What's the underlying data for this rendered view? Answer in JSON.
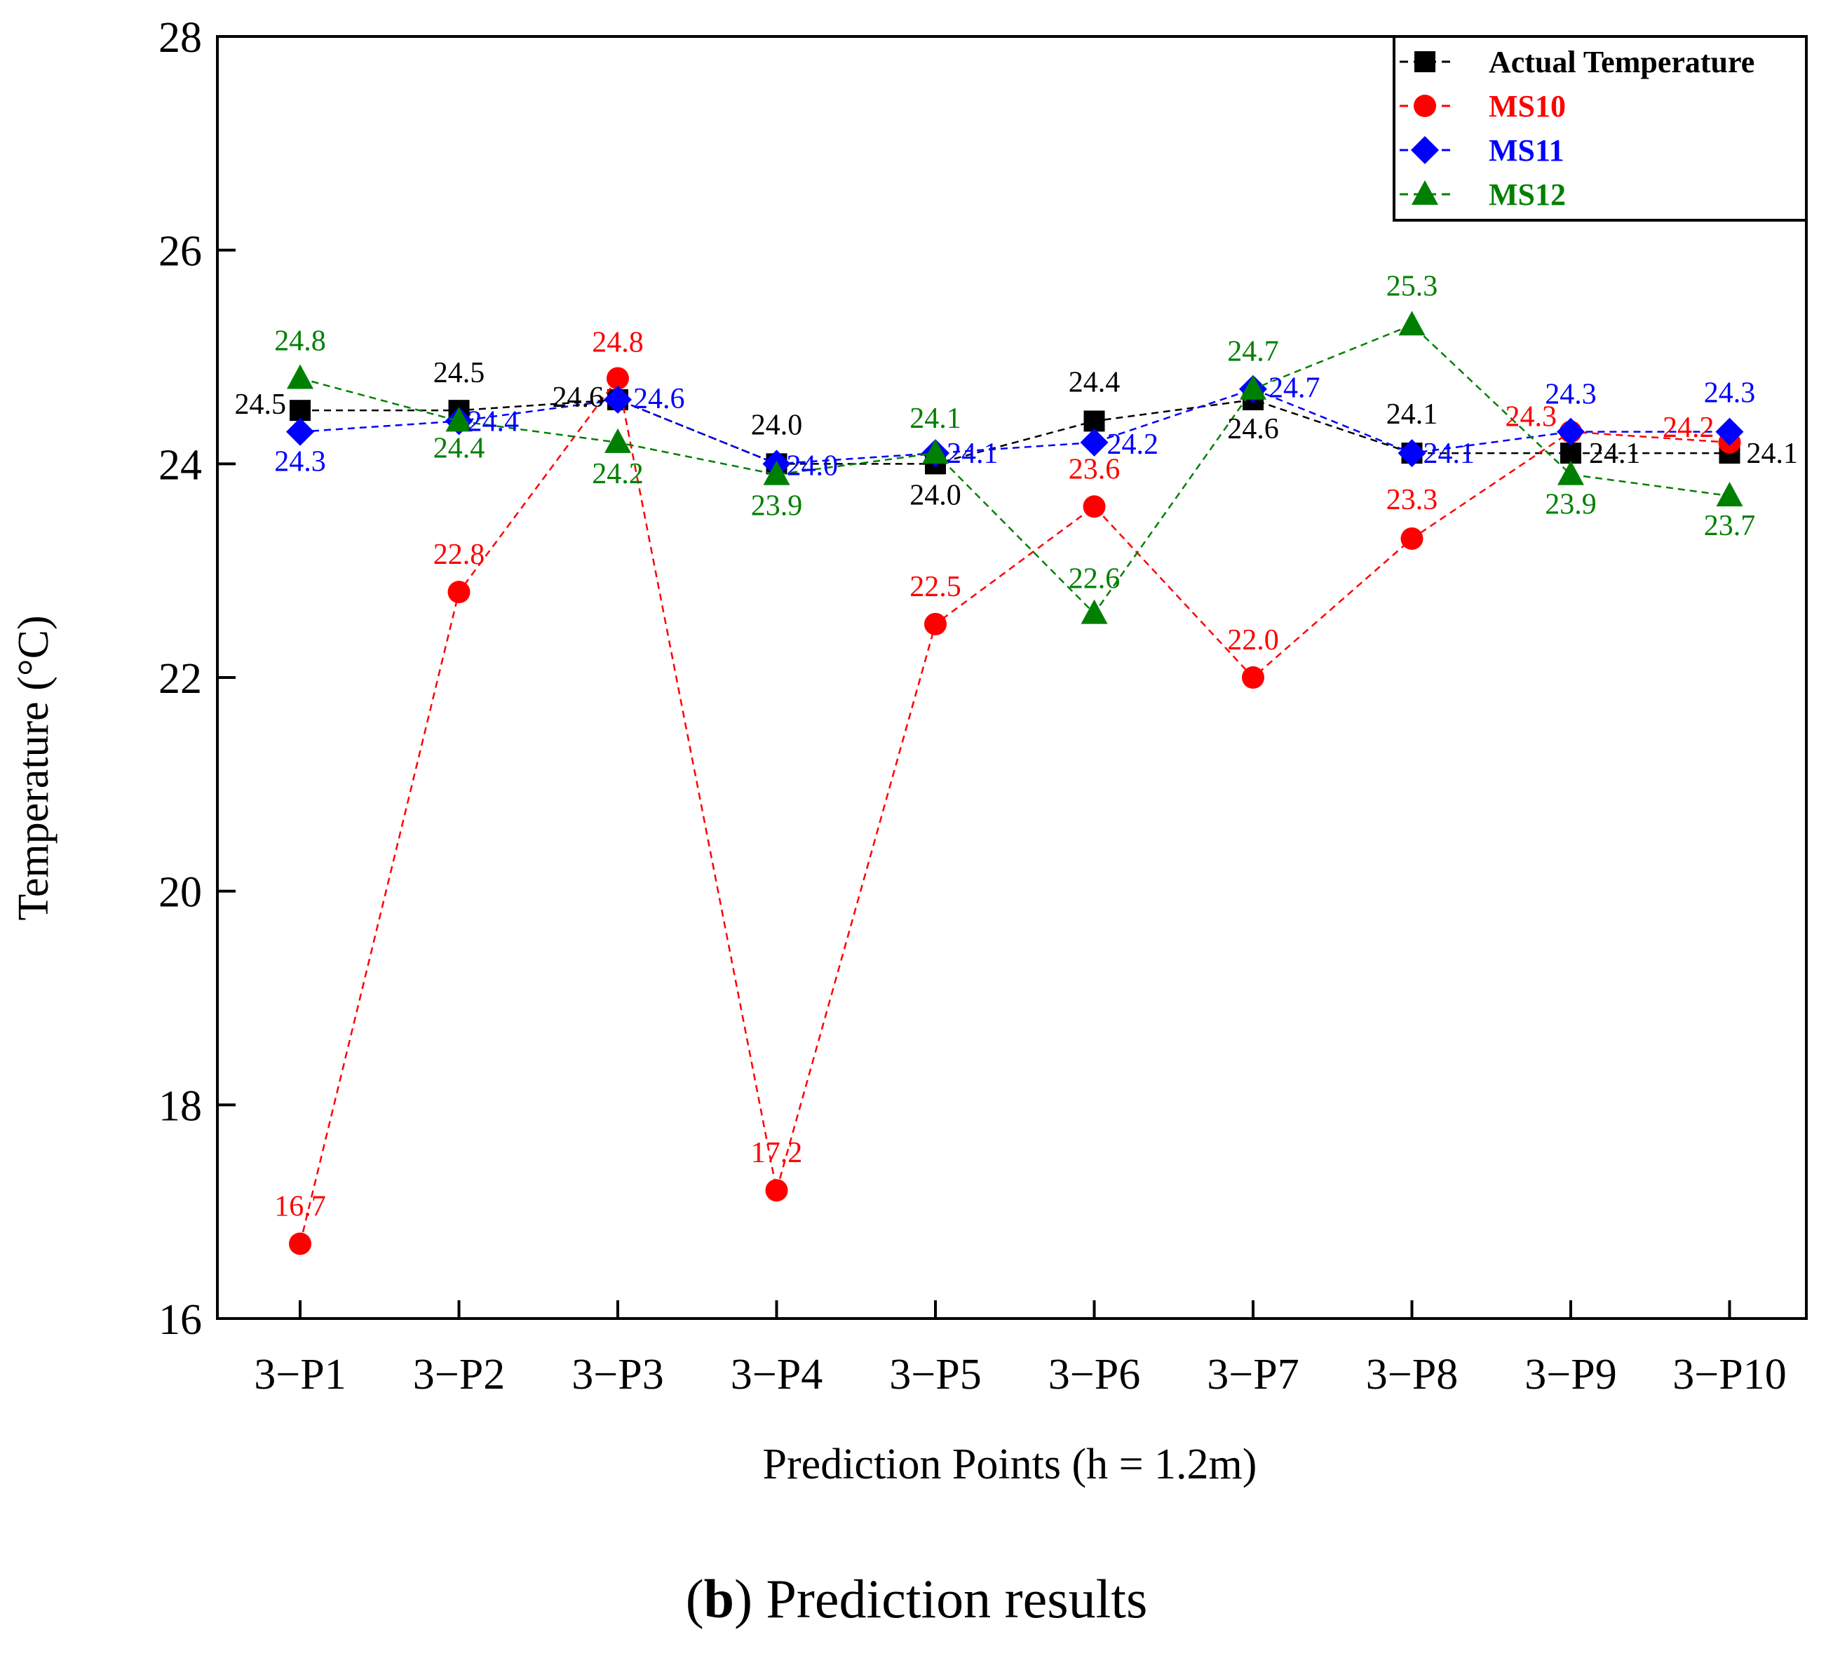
{
  "chart_data": {
    "type": "line",
    "title": "",
    "xlabel": "Prediction Points (h = 1.2m)",
    "ylabel": "Temperature (°C)",
    "ylim": [
      16,
      28
    ],
    "yticks": [
      "16",
      "18",
      "20",
      "22",
      "24",
      "26",
      "28"
    ],
    "categories": [
      "3−P1",
      "3−P2",
      "3−P3",
      "3−P4",
      "3−P5",
      "3−P6",
      "3−P7",
      "3−P8",
      "3−P9",
      "3−P10"
    ],
    "legend_position": "top-right",
    "series": [
      {
        "name": "Actual Temperature",
        "color": "#000000",
        "marker": "square",
        "values": [
          24.5,
          24.5,
          24.6,
          24.0,
          24.0,
          24.4,
          24.6,
          24.1,
          24.1,
          24.1
        ],
        "labels": [
          "24.5",
          "24.5",
          "24.6",
          "24.0",
          "24.0",
          "24.4",
          "24.6",
          "24.1",
          "24.1",
          "24.1"
        ]
      },
      {
        "name": "MS10",
        "color": "#ff0000",
        "marker": "circle",
        "values": [
          16.7,
          22.8,
          24.8,
          17.2,
          22.5,
          23.6,
          22.0,
          23.3,
          24.3,
          24.2
        ],
        "labels": [
          "16.7",
          "22.8",
          "24.8",
          "17.2",
          "22.5",
          "23.6",
          "22.0",
          "23.3",
          "24.3",
          "24.2"
        ]
      },
      {
        "name": "MS11",
        "color": "#0000ff",
        "marker": "diamond",
        "values": [
          24.3,
          24.4,
          24.6,
          24.0,
          24.1,
          24.2,
          24.7,
          24.1,
          24.3,
          24.3
        ],
        "labels": [
          "24.3",
          "24.4",
          "24.6",
          "24.0",
          "24.1",
          "24.2",
          "24.7",
          "24.1",
          "24.3",
          "24.3"
        ]
      },
      {
        "name": "MS12",
        "color": "#008000",
        "marker": "triangle",
        "values": [
          24.8,
          24.4,
          24.2,
          23.9,
          24.1,
          22.6,
          24.7,
          25.3,
          23.9,
          23.7
        ],
        "labels": [
          "24.8",
          "24.4",
          "24.2",
          "23.9",
          "24.1",
          "22.6",
          "24.7",
          "25.3",
          "23.9",
          "23.7"
        ]
      }
    ]
  },
  "caption": {
    "label": "b",
    "text": "Prediction results"
  }
}
